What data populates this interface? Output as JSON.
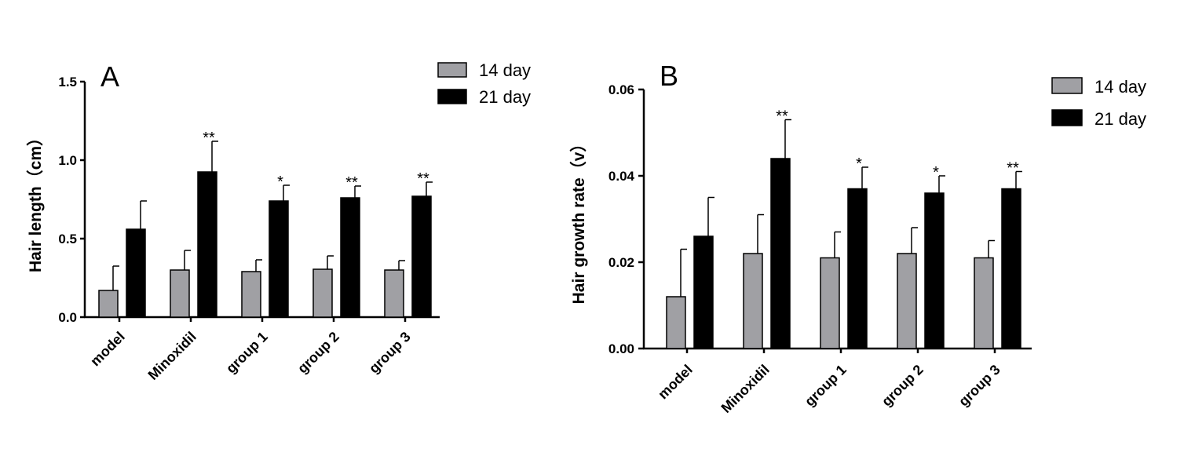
{
  "chart_data": [
    {
      "type": "bar",
      "panel_label": "A",
      "title": "",
      "xlabel": "",
      "ylabel": "Hair length（cm）",
      "ylim": [
        0,
        1.5
      ],
      "yticks": [
        0.0,
        0.5,
        1.0,
        1.5
      ],
      "ytick_labels": [
        "0.0",
        "0.5",
        "1.0",
        "1.5"
      ],
      "categories": [
        "model",
        "Minoxidil",
        "group 1",
        "group 2",
        "group 3"
      ],
      "series": [
        {
          "name": "14 day",
          "color": "#a0a0a4",
          "values": [
            0.17,
            0.3,
            0.29,
            0.305,
            0.3
          ],
          "errors": [
            0.155,
            0.125,
            0.075,
            0.085,
            0.06
          ]
        },
        {
          "name": "21 day",
          "color": "#000000",
          "values": [
            0.56,
            0.925,
            0.74,
            0.76,
            0.77
          ],
          "errors": [
            0.18,
            0.195,
            0.1,
            0.075,
            0.09
          ]
        }
      ],
      "significance": [
        {
          "category": "Minoxidil",
          "label": "**"
        },
        {
          "category": "group 1",
          "label": "*"
        },
        {
          "category": "group 2",
          "label": "**"
        },
        {
          "category": "group 3",
          "label": "**"
        }
      ],
      "legend": "top-right",
      "grid": false
    },
    {
      "type": "bar",
      "panel_label": "B",
      "title": "",
      "xlabel": "",
      "ylabel": "Hair growth rate（v）",
      "ylim": [
        0,
        0.06
      ],
      "yticks": [
        0.0,
        0.02,
        0.04,
        0.06
      ],
      "ytick_labels": [
        "0.00",
        "0.02",
        "0.04",
        "0.06"
      ],
      "categories": [
        "model",
        "Minoxidil",
        "group 1",
        "group 2",
        "group 3"
      ],
      "series": [
        {
          "name": "14 day",
          "color": "#a0a0a4",
          "values": [
            0.012,
            0.022,
            0.021,
            0.022,
            0.021
          ],
          "errors": [
            0.011,
            0.009,
            0.006,
            0.006,
            0.004
          ]
        },
        {
          "name": "21 day",
          "color": "#000000",
          "values": [
            0.026,
            0.044,
            0.037,
            0.036,
            0.037
          ],
          "errors": [
            0.009,
            0.009,
            0.005,
            0.004,
            0.004
          ]
        }
      ],
      "significance": [
        {
          "category": "Minoxidil",
          "label": "**"
        },
        {
          "category": "group 1",
          "label": "*"
        },
        {
          "category": "group 2",
          "label": "*"
        },
        {
          "category": "group 3",
          "label": "**"
        }
      ],
      "legend": "top-right",
      "grid": false
    }
  ]
}
